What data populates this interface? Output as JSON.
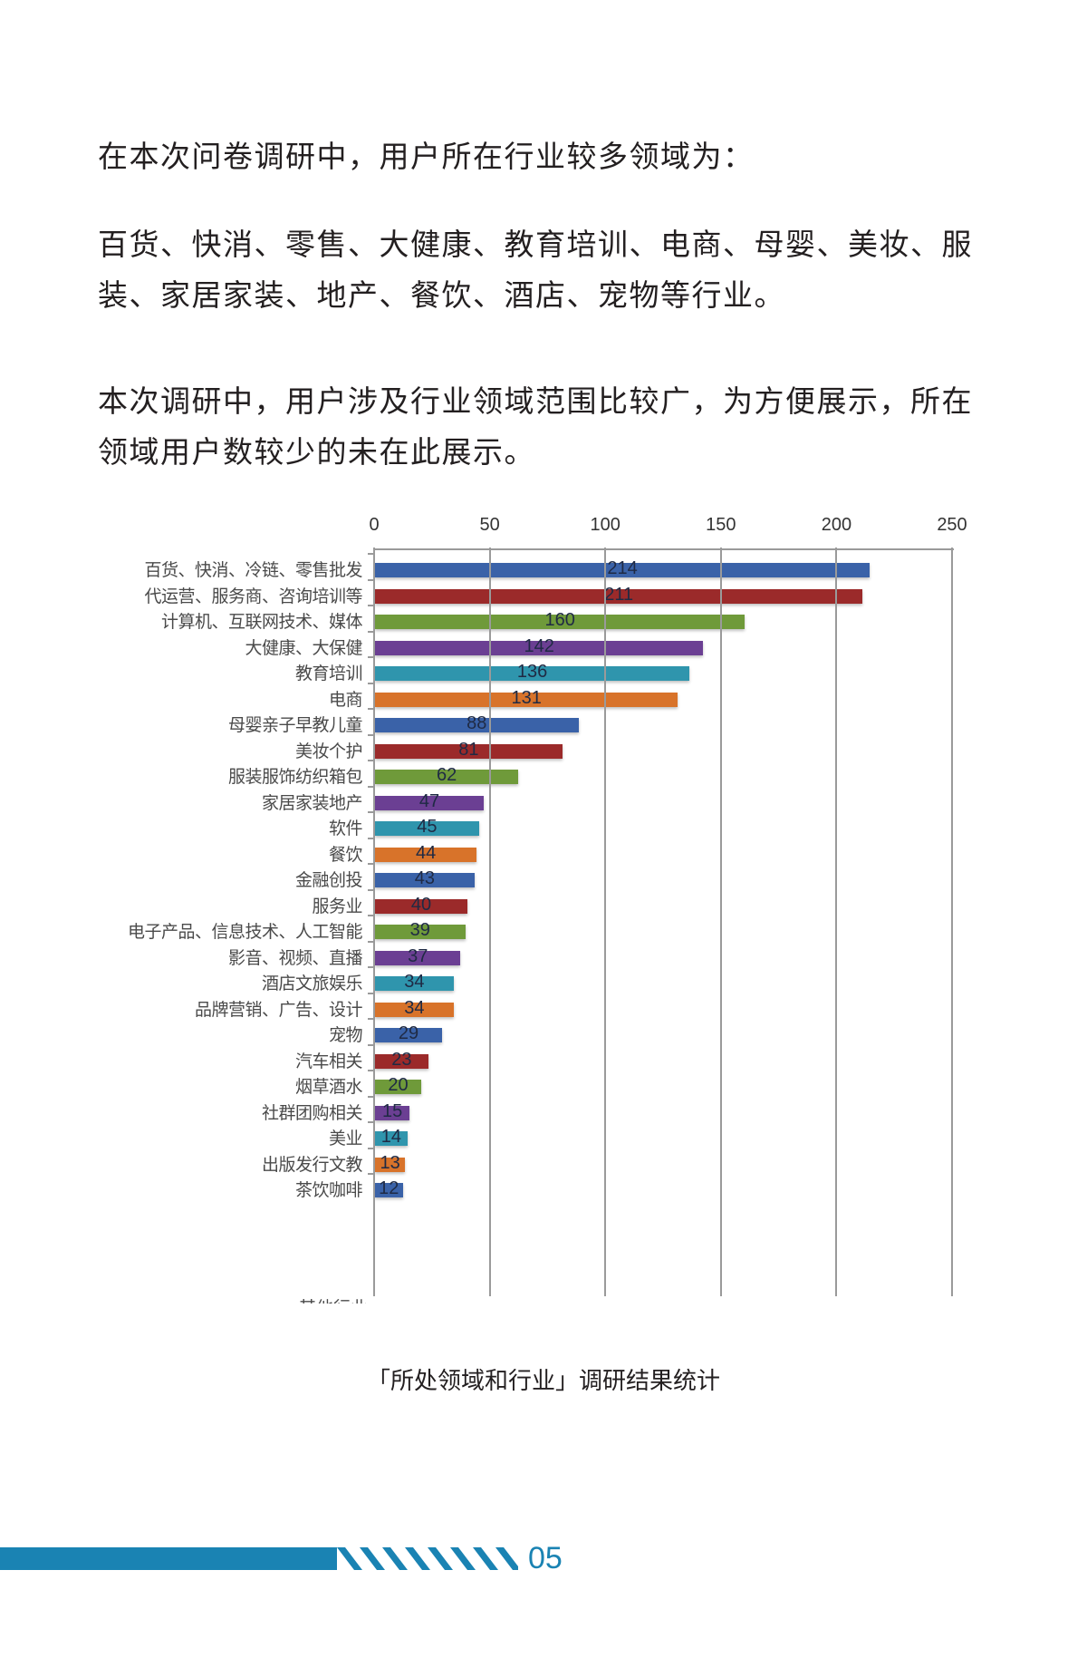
{
  "text": {
    "p1": "在本次问卷调研中，用户所在行业较多领域为：",
    "p2": "百货、快消、零售、大健康、教育培训、电商、母婴、美妆、服装、家居家装、地产、餐饮、酒店、宠物等行业。",
    "p3": "本次调研中，用户涉及行业领域范围比较广，为方便展示，所在领域用户数较少的未在此展示。"
  },
  "chart_data": {
    "type": "bar",
    "orientation": "horizontal",
    "title": "「所处领域和行业」调研结果统计",
    "xlabel": "",
    "ylabel": "",
    "xlim": [
      0,
      250
    ],
    "x_ticks": [
      "0",
      "50",
      "100",
      "150",
      "200",
      "250"
    ],
    "x_axis_position": "top",
    "grid": true,
    "legend": null,
    "categories": [
      "百货、快消、冷链、零售批发",
      "代运营、服务商、咨询培训等",
      "计算机、互联网技术、媒体",
      "大健康、大保健",
      "教育培训",
      "电商",
      "母婴亲子早教儿童",
      "美妆个护",
      "服装服饰纺织箱包",
      "家居家装地产",
      "软件",
      "餐饮",
      "金融创投",
      "服务业",
      "电子产品、信息技术、人工智能",
      "影音、视频、直播",
      "酒店文旅娱乐",
      "品牌营销、广告、设计",
      "宠物",
      "汽车相关",
      "烟草酒水",
      "社群团购相关",
      "美业",
      "出版发行文教",
      "茶饮咖啡"
    ],
    "values": [
      214,
      211,
      160,
      142,
      136,
      131,
      88,
      81,
      62,
      47,
      45,
      44,
      43,
      40,
      39,
      37,
      34,
      34,
      29,
      23,
      20,
      15,
      14,
      13,
      12
    ],
    "bar_colors_cycle": [
      "#3a62a8",
      "#9b2a2a",
      "#6f9a3a",
      "#6b3f93",
      "#2f95ad",
      "#d8732a"
    ],
    "note": "Chart is cropped at bottom; a further category label is partially visible."
  },
  "caption": "「所处领域和行业」调研结果统计",
  "footer": {
    "page_number": "05",
    "accent_color": "#1a83b3"
  }
}
